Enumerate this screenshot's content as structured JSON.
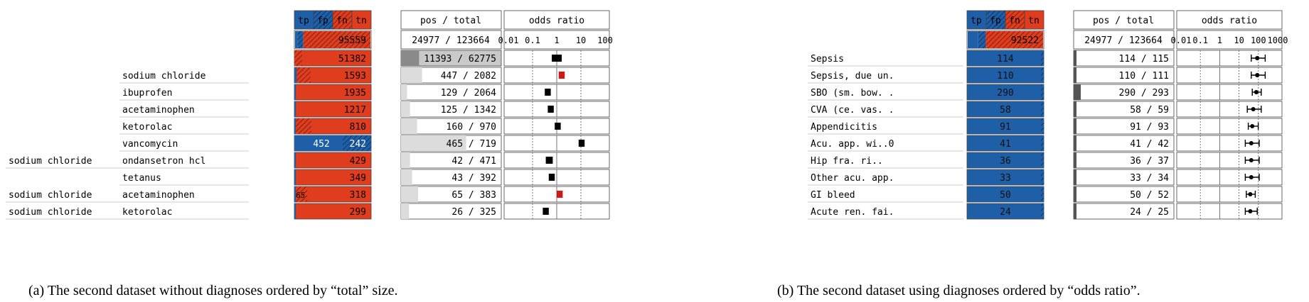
{
  "panel_a": {
    "headers": {
      "tp": "tp",
      "fp": "fp",
      "fn": "fn",
      "tn": "tn",
      "postotal": "pos / total",
      "odds": "odds ratio"
    },
    "summary": {
      "bar_value": "95559",
      "postotal": "24977 / 123664",
      "fracs": {
        "tp": 0.03,
        "fp": 0.08,
        "fn": 0.89,
        "tn": 0
      }
    },
    "odds_ticks": [
      "0.01",
      "0.1",
      "1",
      "10",
      "100"
    ],
    "rows": [
      {
        "label1": "",
        "label2": "",
        "tp": "",
        "fn": "51382",
        "postotal": "11393 / 62775",
        "tpf": 0.0,
        "fpf": 0.1,
        "pos_frac": 0.18,
        "or_log": 0.5,
        "or_lo": 0.45,
        "or_hi": 0.55,
        "highlight": false,
        "fill": "gray"
      },
      {
        "label1": "",
        "label2": "sodium chloride",
        "tp": "",
        "fn": "1593",
        "postotal": "447 / 2082",
        "tpf": 0.03,
        "fpf": 0.18,
        "pos_frac": 0.21,
        "or_log": 0.55,
        "or_lo": 0.52,
        "or_hi": 0.58,
        "highlight": true,
        "fill": "white"
      },
      {
        "label1": "",
        "label2": "ibuprofen",
        "tp": "",
        "fn": "1935",
        "postotal": "129 / 2064",
        "tpf": 0.02,
        "fpf": 0.0,
        "pos_frac": 0.06,
        "or_log": 0.41,
        "or_lo": 0.38,
        "or_hi": 0.44,
        "highlight": false,
        "fill": "white"
      },
      {
        "label1": "",
        "label2": "acetaminophen",
        "tp": "",
        "fn": "1217",
        "postotal": "125 / 1342",
        "tpf": 0.02,
        "fpf": 0.0,
        "pos_frac": 0.09,
        "or_log": 0.44,
        "or_lo": 0.41,
        "or_hi": 0.47,
        "highlight": false,
        "fill": "white"
      },
      {
        "label1": "",
        "label2": "ketorolac",
        "tp": "",
        "fn": "810",
        "postotal": "160 / 970",
        "tpf": 0.02,
        "fpf": 0.2,
        "pos_frac": 0.16,
        "or_log": 0.51,
        "or_lo": 0.48,
        "or_hi": 0.54,
        "highlight": false,
        "fill": "white"
      },
      {
        "label1": "",
        "label2": "vancomycin",
        "tp": "452",
        "fn": "242",
        "postotal": "465 / 719",
        "tpf": 0.63,
        "fpf": 0.0,
        "pos_frac": 0.65,
        "or_log": 0.75,
        "or_lo": 0.72,
        "or_hi": 0.78,
        "highlight": false,
        "fill": "white",
        "blue_dominant": true
      },
      {
        "label1": "sodium chloride",
        "label2": "ondansetron hcl",
        "tp": "",
        "fn": "429",
        "postotal": "42 / 471",
        "tpf": 0.02,
        "fpf": 0.0,
        "pos_frac": 0.09,
        "or_log": 0.42,
        "or_lo": 0.39,
        "or_hi": 0.46,
        "highlight": false,
        "fill": "white"
      },
      {
        "label1": "",
        "label2": "tetanus",
        "tp": "",
        "fn": "349",
        "postotal": "43 / 392",
        "tpf": 0.02,
        "fpf": 0.0,
        "pos_frac": 0.11,
        "or_log": 0.45,
        "or_lo": 0.42,
        "or_hi": 0.48,
        "highlight": false,
        "fill": "white"
      },
      {
        "label1": "sodium chloride",
        "label2": "acetaminophen",
        "tp": "65",
        "fn": "318",
        "postotal": "65 / 383",
        "tpf": 0.02,
        "fpf": 0.15,
        "pos_frac": 0.17,
        "or_log": 0.53,
        "or_lo": 0.5,
        "or_hi": 0.56,
        "highlight": true,
        "fill": "white"
      },
      {
        "label1": "sodium chloride",
        "label2": "ketorolac",
        "tp": "",
        "fn": "299",
        "postotal": "26 / 325",
        "tpf": 0.02,
        "fpf": 0.0,
        "pos_frac": 0.08,
        "or_log": 0.39,
        "or_lo": 0.36,
        "or_hi": 0.42,
        "highlight": false,
        "fill": "white"
      }
    ],
    "caption": "(a)  The second dataset without diagnoses ordered by “total” size."
  },
  "panel_b": {
    "headers": {
      "tp": "tp",
      "fp": "fp",
      "fn": "fn",
      "tn": "tn",
      "postotal": "pos / total",
      "odds": "odds ratio"
    },
    "summary": {
      "bar_value": "92522",
      "postotal": "24977 / 123664",
      "fracs": {
        "tp": 0.14,
        "fp": 0.1,
        "fn": 0.76,
        "tn": 0
      }
    },
    "odds_ticks": [
      "0.01",
      "0.1",
      "1",
      "10",
      "100",
      "1000"
    ],
    "rows": [
      {
        "label": "Sepsis",
        "value": "114",
        "postotal": "114 / 115",
        "pos_frac": 0.99,
        "or_log": 0.78,
        "or_lo": 0.72,
        "or_hi": 0.86
      },
      {
        "label": "Sepsis, due un.",
        "value": "110",
        "postotal": "110 / 111",
        "pos_frac": 0.99,
        "or_log": 0.78,
        "or_lo": 0.72,
        "or_hi": 0.86
      },
      {
        "label": "SBO (sm. bow. .",
        "value": "290",
        "postotal": "290 / 293",
        "pos_frac": 0.99,
        "or_log": 0.77,
        "or_lo": 0.73,
        "or_hi": 0.82
      },
      {
        "label": "CVA (ce. vas. .",
        "value": "58",
        "postotal": "58 / 59",
        "pos_frac": 0.98,
        "or_log": 0.74,
        "or_lo": 0.68,
        "or_hi": 0.82
      },
      {
        "label": "Appendicitis",
        "value": "91",
        "postotal": "91 / 93",
        "pos_frac": 0.98,
        "or_log": 0.73,
        "or_lo": 0.69,
        "or_hi": 0.79
      },
      {
        "label": "Acu. app. wi..0",
        "value": "41",
        "postotal": "41 / 42",
        "pos_frac": 0.98,
        "or_log": 0.72,
        "or_lo": 0.66,
        "or_hi": 0.8
      },
      {
        "label": "Hip fra. ri..",
        "value": "36",
        "postotal": "36 / 37",
        "pos_frac": 0.97,
        "or_log": 0.72,
        "or_lo": 0.66,
        "or_hi": 0.8
      },
      {
        "label": "Other acu. app.",
        "value": "33",
        "postotal": "33 / 34",
        "pos_frac": 0.97,
        "or_log": 0.72,
        "or_lo": 0.66,
        "or_hi": 0.8
      },
      {
        "label": "GI bleed",
        "value": "50",
        "postotal": "50 / 52",
        "pos_frac": 0.96,
        "or_log": 0.71,
        "or_lo": 0.67,
        "or_hi": 0.76
      },
      {
        "label": "Acute ren. fai.",
        "value": "24",
        "postotal": "24 / 25",
        "pos_frac": 0.96,
        "or_log": 0.71,
        "or_lo": 0.66,
        "or_hi": 0.78
      }
    ],
    "caption": "(b)  The second dataset using diagnoses ordered by “odds ratio”."
  },
  "colors": {
    "tp": "#1f5fa8",
    "fn": "#e03c1e",
    "gray": "#888888",
    "highlight": "#d01818"
  }
}
